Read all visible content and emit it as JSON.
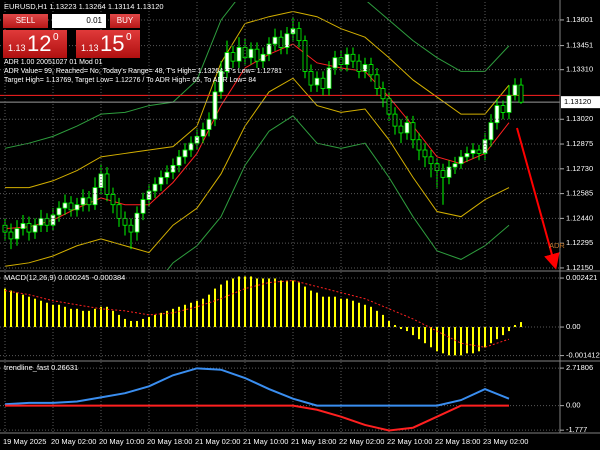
{
  "symbol_line": "EURUSD,H1 1.13223 1.13264 1.13114 1.13120",
  "trade_panel": {
    "sell": "SELL",
    "lot": "0.01",
    "buy": "BUY",
    "sell_price": {
      "prefix": "1.13",
      "main": "12",
      "sup": "0"
    },
    "buy_price": {
      "prefix": "1.13",
      "main": "15",
      "sup": "0"
    }
  },
  "info_lines": [
    "ADR 1.00 20051027 01 Mod 01",
    "ADR Value= 99, Reached= No, Today's Range= 48, T's High= 1.13264, T's Low= 1.12781",
    "Target High= 1.13769, Target Low= 1.12276 / To ADR High= 65, To ADR Low= 84"
  ],
  "chart_data": [
    {
      "type": "candlestick",
      "annotation": "ADR",
      "categories": [
        "19 May 2025",
        null,
        null,
        null,
        null,
        null,
        null,
        null,
        "20 May 02:00",
        null,
        null,
        null,
        null,
        null,
        null,
        null,
        "20 May 10:00",
        null,
        null,
        null,
        null,
        null,
        null,
        null,
        "20 May 18:00",
        null,
        null,
        null,
        null,
        null,
        null,
        null,
        "21 May 02:00",
        null,
        null,
        null,
        null,
        null,
        null,
        null,
        "21 May 10:00",
        null,
        null,
        null,
        null,
        null,
        null,
        null,
        "21 May 18:00",
        null,
        null,
        null,
        null,
        null,
        null,
        null,
        "22 May 02:00",
        null,
        null,
        null,
        null,
        null,
        null,
        null,
        "22 May 10:00",
        null,
        null,
        null,
        null,
        null,
        null,
        null,
        "22 May 18:00",
        null,
        null,
        null,
        null,
        null,
        null,
        null,
        "23 May 02:00",
        null,
        null,
        null,
        null,
        null,
        null
      ],
      "open": [
        1.124,
        1.1236,
        1.1232,
        1.1238,
        1.1241,
        1.1236,
        1.124,
        1.1244,
        1.124,
        1.1246,
        1.125,
        1.1253,
        1.1249,
        1.1252,
        1.1256,
        1.1252,
        1.1262,
        1.127,
        1.1258,
        1.1252,
        1.1244,
        1.124,
        1.1236,
        1.1247,
        1.1255,
        1.126,
        1.1264,
        1.1268,
        1.1271,
        1.1275,
        1.128,
        1.1284,
        1.1288,
        1.1292,
        1.1296,
        1.1302,
        1.1318,
        1.133,
        1.1341,
        1.1336,
        1.1344,
        1.1338,
        1.1343,
        1.1336,
        1.134,
        1.1346,
        1.135,
        1.1344,
        1.1352,
        1.1355,
        1.1348,
        1.133,
        1.1322,
        1.1326,
        1.132,
        1.1332,
        1.1338,
        1.1334,
        1.134,
        1.1336,
        1.133,
        1.1334,
        1.1328,
        1.132,
        1.1314,
        1.1305,
        1.1298,
        1.1294,
        1.13,
        1.129,
        1.1284,
        1.128,
        1.1276,
        1.1272,
        1.1268,
        1.1274,
        1.1276,
        1.128,
        1.1282,
        1.1284,
        1.1282,
        1.129,
        1.13,
        1.131,
        1.1306,
        1.1316,
        1.1322
      ],
      "high": [
        1.1244,
        1.1241,
        1.1243,
        1.1246,
        1.1245,
        1.1244,
        1.1249,
        1.1247,
        1.125,
        1.1254,
        1.1258,
        1.1257,
        1.1256,
        1.1261,
        1.126,
        1.1268,
        1.1276,
        1.1274,
        1.1262,
        1.1256,
        1.1248,
        1.1244,
        1.1251,
        1.1259,
        1.1264,
        1.1268,
        1.1272,
        1.1275,
        1.1279,
        1.1284,
        1.1288,
        1.1292,
        1.1296,
        1.13,
        1.1306,
        1.1324,
        1.1336,
        1.1348,
        1.1345,
        1.135,
        1.1349,
        1.1347,
        1.1347,
        1.1344,
        1.135,
        1.1355,
        1.1354,
        1.1356,
        1.1362,
        1.1359,
        1.1351,
        1.1334,
        1.133,
        1.133,
        1.1336,
        1.1342,
        1.1342,
        1.1344,
        1.1344,
        1.134,
        1.1338,
        1.1338,
        1.1332,
        1.1324,
        1.1318,
        1.1309,
        1.1302,
        1.1304,
        1.1304,
        1.1294,
        1.1288,
        1.1284,
        1.1279,
        1.1276,
        1.1278,
        1.128,
        1.1284,
        1.1286,
        1.1288,
        1.1287,
        1.1294,
        1.1305,
        1.1314,
        1.1313,
        1.1322,
        1.1326,
        1.1326
      ],
      "low": [
        1.1231,
        1.1226,
        1.1228,
        1.1234,
        1.1231,
        1.1232,
        1.1236,
        1.1236,
        1.1237,
        1.1242,
        1.1246,
        1.1245,
        1.1245,
        1.1248,
        1.1248,
        1.1249,
        1.1258,
        1.1254,
        1.1247,
        1.1239,
        1.1234,
        1.1226,
        1.1231,
        1.1243,
        1.1251,
        1.1256,
        1.126,
        1.1264,
        1.1267,
        1.1271,
        1.1276,
        1.128,
        1.1284,
        1.1288,
        1.1292,
        1.1298,
        1.1314,
        1.1326,
        1.1332,
        1.1332,
        1.1334,
        1.1334,
        1.1332,
        1.1332,
        1.1336,
        1.1342,
        1.134,
        1.134,
        1.1348,
        1.1344,
        1.1326,
        1.1318,
        1.1318,
        1.1316,
        1.1316,
        1.1328,
        1.133,
        1.133,
        1.1332,
        1.1326,
        1.1326,
        1.1324,
        1.1316,
        1.1309,
        1.1301,
        1.1293,
        1.1288,
        1.129,
        1.1285,
        1.1278,
        1.1274,
        1.1268,
        1.1262,
        1.1252,
        1.1264,
        1.127,
        1.1273,
        1.1277,
        1.1279,
        1.1278,
        1.1278,
        1.1286,
        1.1296,
        1.1302,
        1.1302,
        1.1313,
        1.1311
      ],
      "close": [
        1.1236,
        1.1232,
        1.1238,
        1.1241,
        1.1236,
        1.124,
        1.1244,
        1.124,
        1.1246,
        1.125,
        1.1253,
        1.1249,
        1.1252,
        1.1256,
        1.1252,
        1.1262,
        1.127,
        1.1258,
        1.1252,
        1.1244,
        1.124,
        1.1236,
        1.1247,
        1.1255,
        1.126,
        1.1264,
        1.1268,
        1.1271,
        1.1275,
        1.128,
        1.1284,
        1.1288,
        1.1292,
        1.1296,
        1.1302,
        1.1318,
        1.133,
        1.1341,
        1.1336,
        1.1344,
        1.1338,
        1.1343,
        1.1336,
        1.134,
        1.1346,
        1.135,
        1.1344,
        1.1352,
        1.1355,
        1.1348,
        1.133,
        1.1322,
        1.1326,
        1.132,
        1.1332,
        1.1338,
        1.1334,
        1.134,
        1.1336,
        1.133,
        1.1334,
        1.1328,
        1.132,
        1.1314,
        1.1305,
        1.1298,
        1.1294,
        1.13,
        1.129,
        1.1284,
        1.128,
        1.1276,
        1.1272,
        1.1268,
        1.1274,
        1.1276,
        1.128,
        1.1282,
        1.1284,
        1.1282,
        1.129,
        1.13,
        1.131,
        1.1306,
        1.1316,
        1.1322,
        1.1312
      ],
      "up_color": "#ffffff",
      "down_color": "#000000",
      "wick_color": "#00ff00",
      "overlay_x": [
        0,
        4,
        8,
        12,
        16,
        20,
        24,
        28,
        32,
        36,
        40,
        44,
        48,
        52,
        56,
        60,
        64,
        68,
        72,
        76,
        80,
        84
      ],
      "overlays": [
        {
          "color": "#ff2020",
          "values": [
            1.1238,
            1.1239,
            1.1243,
            1.125,
            1.1256,
            1.1252,
            1.1252,
            1.1265,
            1.1282,
            1.131,
            1.1332,
            1.134,
            1.1346,
            1.1335,
            1.1332,
            1.133,
            1.1315,
            1.1298,
            1.128,
            1.1276,
            1.1282,
            1.13
          ]
        },
        {
          "color": "#d4b000",
          "values": [
            1.1262,
            1.1262,
            1.1266,
            1.1272,
            1.128,
            1.1282,
            1.1284,
            1.1286,
            1.1298,
            1.1335,
            1.1358,
            1.1362,
            1.1365,
            1.1362,
            1.1355,
            1.135,
            1.1338,
            1.1325,
            1.1315,
            1.1305,
            1.1305,
            1.1322
          ]
        },
        {
          "color": "#d4b000",
          "values": [
            1.1216,
            1.1218,
            1.1222,
            1.1228,
            1.1232,
            1.1228,
            1.1224,
            1.124,
            1.125,
            1.127,
            1.1298,
            1.1318,
            1.1326,
            1.131,
            1.1306,
            1.1308,
            1.129,
            1.1268,
            1.1248,
            1.1245,
            1.1255,
            1.1262
          ]
        },
        {
          "color": "#2e9e3e",
          "values": [
            1.1285,
            1.1288,
            1.1292,
            1.1298,
            1.1305,
            1.1306,
            1.131,
            1.1312,
            1.1325,
            1.136,
            1.1378,
            1.1384,
            1.1387,
            1.1385,
            1.1378,
            1.1372,
            1.136,
            1.1348,
            1.1338,
            1.133,
            1.133,
            1.1345
          ]
        },
        {
          "color": "#2e9e3e",
          "values": [
            1.1195,
            1.1196,
            1.12,
            1.1205,
            1.1208,
            1.1205,
            1.12,
            1.1218,
            1.1228,
            1.1245,
            1.1275,
            1.1295,
            1.1304,
            1.1288,
            1.1285,
            1.1288,
            1.1268,
            1.1245,
            1.1225,
            1.122,
            1.1228,
            1.124
          ]
        }
      ],
      "level_line": 1.1316,
      "level_color": "#ff2020",
      "last_price": {
        "value": 1.1312,
        "label": "1.13120"
      },
      "ylim": [
        1.12138,
        1.13706
      ],
      "yticks": [
        1.13601,
        1.13451,
        {
          "value": 1.1331,
          "label": "1.13310"
        },
        {
          "value": 1.1302,
          "label": "1.13020"
        },
        1.12875,
        {
          "value": 1.1273,
          "label": "1.12730"
        },
        1.12585,
        {
          "value": 1.1244,
          "label": "1.12440"
        },
        1.12295,
        {
          "value": 1.1215,
          "label": "1.12150"
        }
      ],
      "grid": true
    },
    {
      "type": "bar",
      "title": "MACD(12,26,9) 0.000245 -0.000384",
      "color": "#ffff00",
      "values": [
        0.0019,
        0.0018,
        0.0017,
        0.0016,
        0.0015,
        0.0014,
        0.0013,
        0.0012,
        0.0011,
        0.0011,
        0.001,
        0.0009,
        0.0009,
        0.0008,
        0.0008,
        0.0009,
        0.001,
        0.001,
        0.0008,
        0.0006,
        0.0004,
        0.0003,
        0.0003,
        0.0004,
        0.0005,
        0.0006,
        0.0007,
        0.0008,
        0.0009,
        0.001,
        0.0011,
        0.0012,
        0.0013,
        0.0014,
        0.0016,
        0.0019,
        0.0021,
        0.0023,
        0.0024,
        0.0025,
        0.0025,
        0.0025,
        0.0024,
        0.0024,
        0.0024,
        0.0024,
        0.0023,
        0.0023,
        0.0023,
        0.0022,
        0.002,
        0.0018,
        0.0017,
        0.0015,
        0.0015,
        0.0015,
        0.0014,
        0.0014,
        0.0013,
        0.0012,
        0.0011,
        0.001,
        0.0008,
        0.0006,
        0.0003,
        0.0001,
        -0.0001,
        -0.0002,
        -0.0004,
        -0.0006,
        -0.0008,
        -0.001,
        -0.0012,
        -0.0013,
        -0.0014,
        -0.0014,
        -0.0014,
        -0.0013,
        -0.0013,
        -0.0012,
        -0.001,
        -0.0008,
        -0.0006,
        -0.0004,
        -0.0002,
        0.0001,
        0.000245
      ],
      "signal": {
        "color": "#ff2020",
        "x": [
          0,
          4,
          8,
          12,
          16,
          20,
          24,
          28,
          32,
          36,
          40,
          44,
          48,
          52,
          56,
          60,
          64,
          68,
          72,
          76,
          80,
          84
        ],
        "values": [
          0.0018,
          0.0016,
          0.0013,
          0.0011,
          0.0009,
          0.0008,
          0.0006,
          0.0007,
          0.001,
          0.0014,
          0.0019,
          0.0022,
          0.0023,
          0.002,
          0.0017,
          0.0014,
          0.0009,
          0.0004,
          -0.0002,
          -0.0008,
          -0.001,
          -0.0006
        ]
      },
      "ylim": [
        -0.00163,
        0.00272
      ],
      "yticks": [
        0.002421,
        {
          "value": 0,
          "label": "0.00"
        },
        -0.001412
      ],
      "grid": true
    },
    {
      "type": "line",
      "title": "trendline_fast 0.26631",
      "x": [
        0,
        4,
        8,
        12,
        16,
        20,
        24,
        28,
        32,
        36,
        40,
        44,
        48,
        52,
        56,
        60,
        64,
        68,
        72,
        76,
        80,
        84
      ],
      "series": [
        {
          "color": "#3a8ef0",
          "values": [
            0.1,
            0.2,
            0.2,
            0.3,
            0.6,
            0.9,
            1.4,
            2.2,
            2.7,
            2.6,
            2.0,
            1.2,
            0.5,
            0,
            0,
            0,
            0,
            0,
            0,
            0.4,
            1.2,
            0.5
          ]
        },
        {
          "color": "#ff2020",
          "values": [
            0,
            0,
            0,
            0,
            0,
            0,
            0,
            0,
            0,
            0,
            0,
            0,
            0,
            -0.3,
            -0.8,
            -1.4,
            -1.8,
            -1.6,
            -0.8,
            0,
            0,
            0
          ]
        }
      ],
      "ylim": [
        -1.91,
        3.16
      ],
      "yticks": [
        2.71806,
        {
          "value": 0,
          "label": "0.00"
        },
        -1.777
      ],
      "grid": true
    }
  ]
}
